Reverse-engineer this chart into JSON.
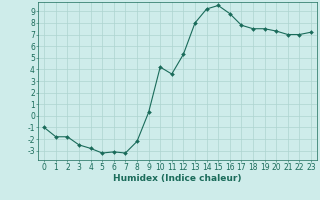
{
  "x": [
    0,
    1,
    2,
    3,
    4,
    5,
    6,
    7,
    8,
    9,
    10,
    11,
    12,
    13,
    14,
    15,
    16,
    17,
    18,
    19,
    20,
    21,
    22,
    23
  ],
  "y": [
    -1.0,
    -1.8,
    -1.8,
    -2.5,
    -2.8,
    -3.2,
    -3.1,
    -3.2,
    -2.2,
    0.3,
    4.2,
    3.6,
    5.3,
    8.0,
    9.2,
    9.5,
    8.8,
    7.8,
    7.5,
    7.5,
    7.3,
    7.0,
    7.0,
    7.2
  ],
  "line_color": "#1a6b5a",
  "marker": "D",
  "marker_size": 2.0,
  "bg_color": "#ceecea",
  "grid_color": "#aed4d0",
  "xlabel": "Humidex (Indice chaleur)",
  "xlim": [
    -0.5,
    23.5
  ],
  "ylim": [
    -3.8,
    9.8
  ],
  "yticks": [
    -3,
    -2,
    -1,
    0,
    1,
    2,
    3,
    4,
    5,
    6,
    7,
    8,
    9
  ],
  "xticks": [
    0,
    1,
    2,
    3,
    4,
    5,
    6,
    7,
    8,
    9,
    10,
    11,
    12,
    13,
    14,
    15,
    16,
    17,
    18,
    19,
    20,
    21,
    22,
    23
  ],
  "tick_color": "#1a6b5a",
  "label_fontsize": 5.5,
  "xlabel_fontsize": 6.5
}
